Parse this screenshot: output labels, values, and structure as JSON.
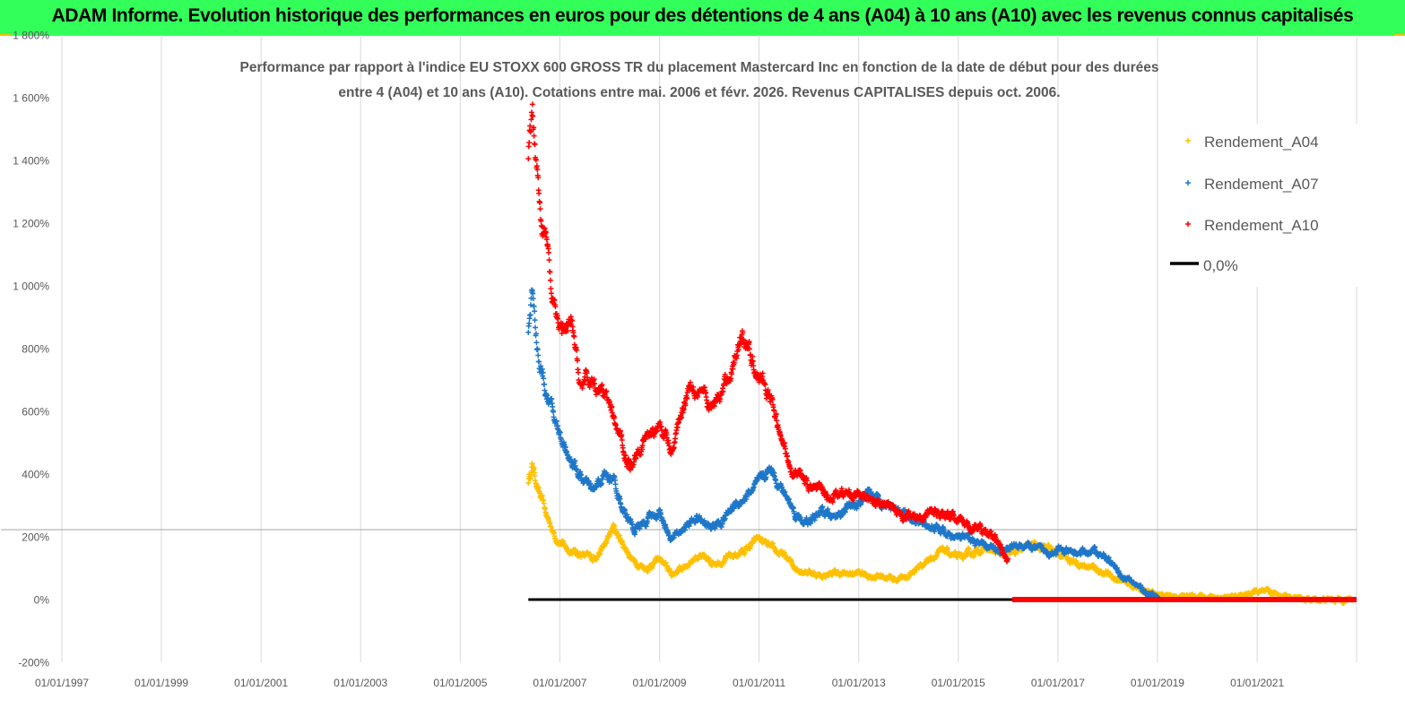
{
  "banner": {
    "title": "ADAM Informe. Evolution historique des performances en euros pour des détentions de 4 ans (A04) à 10 ans (A10) avec les revenus connus capitalisés",
    "background": "#33ff5a"
  },
  "chart_data": {
    "type": "scatter",
    "title_lines": [
      "Performance par rapport à l'indice EU STOXX 600 GROSS TR  du placement Mastercard Inc en fonction de la date de début pour des durées",
      "entre 4 (A04) et 10 ans (A10). Cotations entre mai. 2006 et févr. 2026. Revenus CAPITALISES depuis oct. 2006."
    ],
    "xlabel": "",
    "ylabel": "",
    "x_ticks": [
      "01/01/1997",
      "01/01/1999",
      "01/01/2001",
      "01/01/2003",
      "01/01/2005",
      "01/01/2007",
      "01/01/2009",
      "01/01/2011",
      "01/01/2013",
      "01/01/2015",
      "01/01/2017",
      "01/01/2019",
      "01/01/2021"
    ],
    "x_range": [
      "1997-01-01",
      "2022-12-31"
    ],
    "y_ticks": [
      "-200%",
      "0%",
      "200%",
      "400%",
      "600%",
      "800%",
      "1 000%",
      "1 200%",
      "1 400%",
      "1 600%",
      "1 800%"
    ],
    "y_range": [
      -200,
      1800
    ],
    "grid": "vertical",
    "legend_position": "top-right",
    "series": [
      {
        "name": "Rendement_A04",
        "color": "#ffc000",
        "marker": "+",
        "points": [
          [
            "2006-05-15",
            380
          ],
          [
            "2006-06-15",
            430
          ],
          [
            "2006-08-01",
            340
          ],
          [
            "2006-10-01",
            260
          ],
          [
            "2006-12-01",
            200
          ],
          [
            "2007-03-01",
            160
          ],
          [
            "2007-06-01",
            145
          ],
          [
            "2007-09-01",
            130
          ],
          [
            "2007-12-01",
            175
          ],
          [
            "2008-02-01",
            230
          ],
          [
            "2008-04-01",
            180
          ],
          [
            "2008-07-01",
            120
          ],
          [
            "2008-10-01",
            100
          ],
          [
            "2009-01-01",
            130
          ],
          [
            "2009-04-01",
            80
          ],
          [
            "2009-07-01",
            105
          ],
          [
            "2009-10-01",
            140
          ],
          [
            "2010-01-01",
            120
          ],
          [
            "2010-04-01",
            125
          ],
          [
            "2010-07-01",
            140
          ],
          [
            "2010-10-01",
            160
          ],
          [
            "2011-01-01",
            195
          ],
          [
            "2011-04-01",
            160
          ],
          [
            "2011-07-01",
            140
          ],
          [
            "2011-10-01",
            100
          ],
          [
            "2012-01-01",
            90
          ],
          [
            "2012-04-01",
            75
          ],
          [
            "2012-07-01",
            85
          ],
          [
            "2012-10-01",
            80
          ],
          [
            "2013-01-01",
            85
          ],
          [
            "2013-04-01",
            75
          ],
          [
            "2013-07-01",
            75
          ],
          [
            "2013-10-01",
            65
          ],
          [
            "2014-01-01",
            75
          ],
          [
            "2014-04-01",
            110
          ],
          [
            "2014-07-01",
            140
          ],
          [
            "2014-10-01",
            155
          ],
          [
            "2015-01-01",
            130
          ],
          [
            "2015-04-01",
            145
          ],
          [
            "2015-07-01",
            165
          ],
          [
            "2015-10-01",
            150
          ],
          [
            "2016-01-01",
            140
          ],
          [
            "2016-04-01",
            160
          ],
          [
            "2016-07-01",
            175
          ],
          [
            "2016-10-01",
            170
          ],
          [
            "2017-01-01",
            150
          ],
          [
            "2017-04-01",
            130
          ],
          [
            "2017-07-01",
            110
          ],
          [
            "2017-10-01",
            100
          ],
          [
            "2018-01-01",
            80
          ],
          [
            "2018-04-01",
            60
          ],
          [
            "2018-07-01",
            45
          ],
          [
            "2018-10-01",
            25
          ],
          [
            "2019-01-01",
            15
          ],
          [
            "2019-07-01",
            10
          ],
          [
            "2020-01-01",
            10
          ],
          [
            "2020-07-01",
            5
          ],
          [
            "2021-01-01",
            25
          ],
          [
            "2021-07-01",
            15
          ],
          [
            "2022-01-01",
            0
          ],
          [
            "2022-12-01",
            0
          ]
        ]
      },
      {
        "name": "Rendement_A07",
        "color": "#1f77c9",
        "marker": "+",
        "points": [
          [
            "2006-05-15",
            850
          ],
          [
            "2006-06-15",
            1000
          ],
          [
            "2006-08-01",
            760
          ],
          [
            "2006-10-01",
            650
          ],
          [
            "2006-12-01",
            560
          ],
          [
            "2007-03-01",
            470
          ],
          [
            "2007-06-01",
            390
          ],
          [
            "2007-09-01",
            340
          ],
          [
            "2007-12-01",
            400
          ],
          [
            "2008-02-01",
            380
          ],
          [
            "2008-04-01",
            300
          ],
          [
            "2008-07-01",
            220
          ],
          [
            "2008-10-01",
            250
          ],
          [
            "2009-01-01",
            280
          ],
          [
            "2009-04-01",
            190
          ],
          [
            "2009-07-01",
            230
          ],
          [
            "2009-10-01",
            260
          ],
          [
            "2010-01-01",
            230
          ],
          [
            "2010-04-01",
            250
          ],
          [
            "2010-07-01",
            300
          ],
          [
            "2010-10-01",
            330
          ],
          [
            "2011-01-01",
            370
          ],
          [
            "2011-04-01",
            420
          ],
          [
            "2011-07-01",
            340
          ],
          [
            "2011-10-01",
            270
          ],
          [
            "2012-01-01",
            240
          ],
          [
            "2012-04-01",
            280
          ],
          [
            "2012-07-01",
            260
          ],
          [
            "2012-10-01",
            290
          ],
          [
            "2013-01-01",
            300
          ],
          [
            "2013-04-01",
            330
          ],
          [
            "2013-07-01",
            310
          ],
          [
            "2013-10-01",
            300
          ],
          [
            "2014-01-01",
            270
          ],
          [
            "2014-04-01",
            240
          ],
          [
            "2014-07-01",
            230
          ],
          [
            "2014-10-01",
            210
          ],
          [
            "2015-01-01",
            195
          ],
          [
            "2015-04-01",
            190
          ],
          [
            "2015-07-01",
            170
          ],
          [
            "2015-10-01",
            160
          ],
          [
            "2016-01-01",
            165
          ],
          [
            "2016-04-01",
            175
          ],
          [
            "2016-07-01",
            165
          ],
          [
            "2016-10-01",
            150
          ],
          [
            "2017-01-01",
            160
          ],
          [
            "2017-04-01",
            145
          ],
          [
            "2017-07-01",
            150
          ],
          [
            "2017-10-01",
            155
          ],
          [
            "2018-01-01",
            130
          ],
          [
            "2018-04-01",
            80
          ],
          [
            "2018-07-01",
            55
          ],
          [
            "2018-10-01",
            25
          ],
          [
            "2019-01-01",
            5
          ]
        ]
      },
      {
        "name": "Rendement_A10",
        "color": "#ff0000",
        "marker": "+",
        "points": [
          [
            "2006-05-15",
            1400
          ],
          [
            "2006-06-15",
            1560
          ],
          [
            "2006-07-15",
            1400
          ],
          [
            "2006-08-01",
            1280
          ],
          [
            "2006-09-01",
            1180
          ],
          [
            "2006-10-01",
            1120
          ],
          [
            "2006-11-01",
            960
          ],
          [
            "2006-12-01",
            900
          ],
          [
            "2007-02-01",
            850
          ],
          [
            "2007-04-01",
            860
          ],
          [
            "2007-06-01",
            680
          ],
          [
            "2007-09-01",
            700
          ],
          [
            "2007-12-01",
            650
          ],
          [
            "2008-02-01",
            560
          ],
          [
            "2008-04-01",
            500
          ],
          [
            "2008-06-01",
            420
          ],
          [
            "2008-08-01",
            490
          ],
          [
            "2008-10-01",
            520
          ],
          [
            "2009-01-01",
            560
          ],
          [
            "2009-04-01",
            470
          ],
          [
            "2009-06-01",
            580
          ],
          [
            "2009-08-01",
            690
          ],
          [
            "2009-11-01",
            680
          ],
          [
            "2010-01-01",
            600
          ],
          [
            "2010-04-01",
            650
          ],
          [
            "2010-07-01",
            760
          ],
          [
            "2010-09-01",
            860
          ],
          [
            "2010-11-01",
            780
          ],
          [
            "2011-01-01",
            720
          ],
          [
            "2011-04-01",
            630
          ],
          [
            "2011-06-01",
            520
          ],
          [
            "2011-09-01",
            420
          ],
          [
            "2011-12-01",
            370
          ],
          [
            "2012-03-01",
            350
          ],
          [
            "2012-06-01",
            330
          ],
          [
            "2012-09-01",
            340
          ],
          [
            "2013-01-01",
            330
          ],
          [
            "2013-04-01",
            320
          ],
          [
            "2013-07-01",
            300
          ],
          [
            "2013-10-01",
            290
          ],
          [
            "2014-01-01",
            260
          ],
          [
            "2014-04-01",
            270
          ],
          [
            "2014-07-01",
            280
          ],
          [
            "2014-10-01",
            270
          ],
          [
            "2015-01-01",
            260
          ],
          [
            "2015-04-01",
            230
          ],
          [
            "2015-07-01",
            220
          ],
          [
            "2015-10-01",
            190
          ],
          [
            "2016-01-01",
            130
          ]
        ]
      },
      {
        "name": "0,0%",
        "color": "#000000",
        "marker": "line",
        "points": [
          [
            "2006-05-15",
            0
          ],
          [
            "2016-02-01",
            0
          ]
        ]
      }
    ],
    "overlay": {
      "color": "#ff0000",
      "points": [
        [
          "2016-02-01",
          0
        ],
        [
          "2022-12-31",
          0
        ]
      ]
    }
  }
}
